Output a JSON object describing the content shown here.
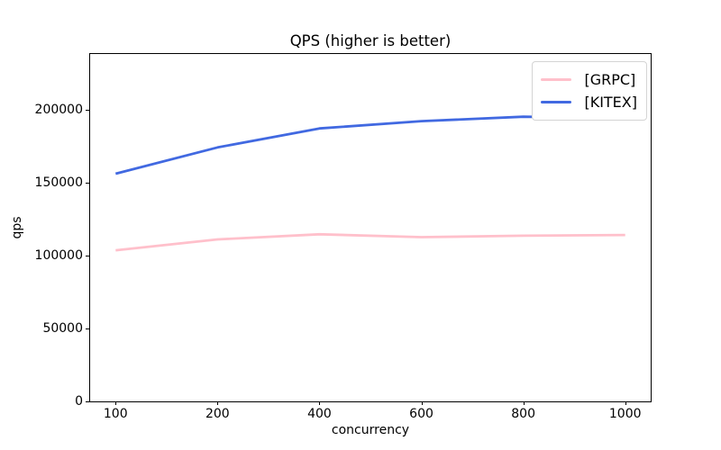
{
  "chart_data": {
    "type": "line",
    "title": "QPS (higher is better)",
    "xlabel": "concurrency",
    "ylabel": "qps",
    "x": [
      100,
      200,
      400,
      600,
      800,
      1000
    ],
    "x_tick_labels": [
      "100",
      "200",
      "400",
      "600",
      "800",
      "1000"
    ],
    "x_scale": "categorical",
    "x_margin": 0.25,
    "y_ticks": [
      0,
      50000,
      100000,
      150000,
      200000
    ],
    "y_tick_labels": [
      "0",
      "50000",
      "100000",
      "150000",
      "200000"
    ],
    "ylim": [
      0,
      238000
    ],
    "grid": false,
    "background_color": "#ffffff",
    "legend": {
      "position": "upper right"
    },
    "series": [
      {
        "name": "[GRPC]",
        "color": "#ffc0cb",
        "values": [
          103500,
          111000,
          114500,
          112500,
          113500,
          114000
        ]
      },
      {
        "name": "[KITEX]",
        "color": "#4169e1",
        "values": [
          156000,
          174000,
          187000,
          192000,
          195000,
          194000
        ]
      }
    ]
  }
}
